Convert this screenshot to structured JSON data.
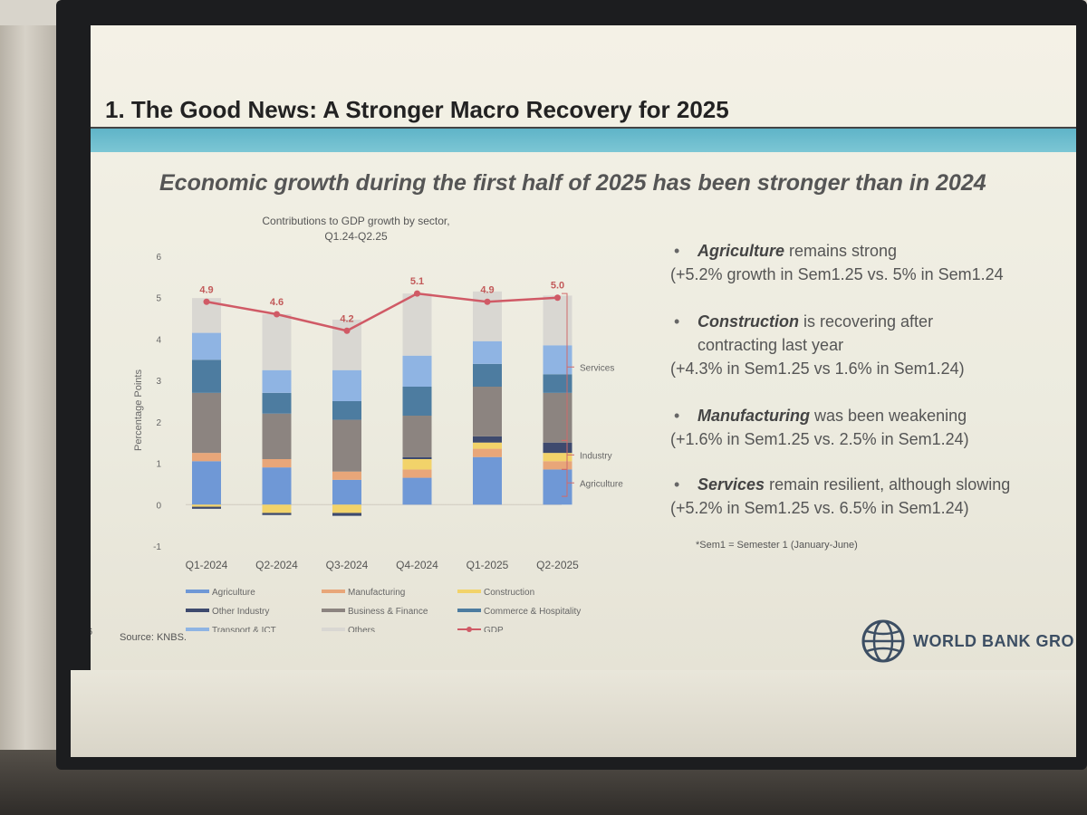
{
  "slide": {
    "title": "1. The Good News: A Stronger Macro Recovery for 2025",
    "subtitle": "Economic growth during the first half of 2025 has been stronger than in 2024",
    "page_number": "6",
    "source": "Source: KNBS.",
    "logo_text": "WORLD BANK GRO",
    "note": "*Sem1 = Semester 1 (January-June)",
    "bullets": [
      {
        "bold": "Agriculture",
        "rest": " remains strong",
        "lines": [
          "(+5.2% growth in Sem1.25 vs. 5% in Sem1.24"
        ]
      },
      {
        "bold": "Construction",
        "rest": " is recovering after",
        "lines": [
          "contracting last year",
          "(+4.3% in Sem1.25 vs 1.6% in Sem1.24)"
        ]
      },
      {
        "bold": "Manufacturing",
        "rest": " was been weakening",
        "lines": [
          "(+1.6% in Sem1.25 vs. 2.5% in Sem1.24)"
        ]
      },
      {
        "bold": "Services",
        "rest": " remain resilient, although slowing",
        "lines": [
          "(+5.2% in Sem1.25 vs. 6.5% in Sem1.24)"
        ]
      }
    ]
  },
  "chart_data": {
    "type": "bar",
    "stacked": true,
    "title_lines": [
      "Contributions to GDP growth by sector,",
      "Q1.24-Q2.25"
    ],
    "ylabel": "Percentage Points",
    "ylim": [
      -1,
      6
    ],
    "yticks": [
      -1,
      0,
      1,
      2,
      3,
      4,
      5,
      6
    ],
    "categories": [
      "Q1-2024",
      "Q2-2024",
      "Q3-2024",
      "Q4-2024",
      "Q1-2025",
      "Q2-2025"
    ],
    "series": [
      {
        "name": "Agriculture",
        "color": "#6f98d6",
        "values": [
          1.05,
          0.9,
          0.6,
          0.65,
          1.15,
          0.85
        ]
      },
      {
        "name": "Manufacturing",
        "color": "#e8a679",
        "values": [
          0.2,
          0.2,
          0.2,
          0.2,
          0.2,
          0.2
        ]
      },
      {
        "name": "Construction",
        "color": "#f2d36a",
        "values": [
          -0.05,
          -0.2,
          -0.2,
          0.25,
          0.15,
          0.2
        ]
      },
      {
        "name": "Other Industry",
        "color": "#3e4a6e",
        "values": [
          -0.05,
          -0.05,
          -0.07,
          0.05,
          0.15,
          0.25
        ]
      },
      {
        "name": "Business & Finance",
        "color": "#8c8480",
        "values": [
          1.45,
          1.1,
          1.25,
          1.0,
          1.2,
          1.2
        ]
      },
      {
        "name": "Commerce & Hospitality",
        "color": "#4d7ca0",
        "values": [
          0.8,
          0.5,
          0.45,
          0.7,
          0.55,
          0.45
        ]
      },
      {
        "name": "Transport & ICT",
        "color": "#8fb4e3",
        "values": [
          0.65,
          0.55,
          0.75,
          0.75,
          0.55,
          0.7
        ]
      },
      {
        "name": "Others",
        "color": "#d9d7d2",
        "values": [
          0.84,
          1.35,
          1.22,
          1.5,
          1.2,
          1.2
        ]
      },
      {
        "name": "GDP",
        "type": "line",
        "color": "#d05a66",
        "values": [
          4.9,
          4.6,
          4.2,
          5.1,
          4.9,
          5.0
        ]
      }
    ],
    "brackets": [
      {
        "label": "Services",
        "from": 1.55,
        "to": 5.1
      },
      {
        "label": "Industry",
        "from": 0.85,
        "to": 1.55
      },
      {
        "label": "Agriculture",
        "from": 0.2,
        "to": 0.85
      }
    ]
  }
}
